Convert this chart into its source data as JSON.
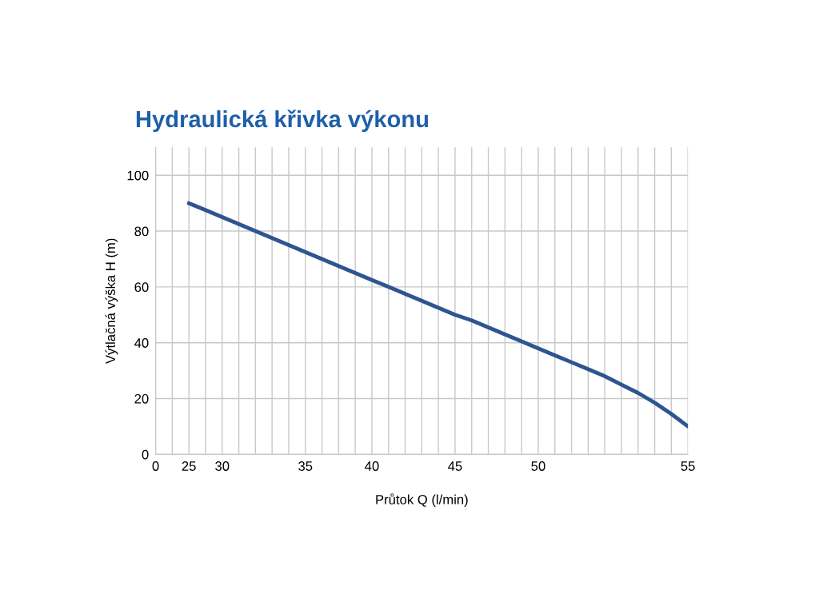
{
  "chart_data": {
    "type": "line",
    "title": "Hydraulická křivka výkonu",
    "xlabel": "Průtok Q (l/min)",
    "ylabel": "Výtlačná výška H (m)",
    "categories": [
      "0",
      null,
      "25",
      null,
      "30",
      null,
      null,
      null,
      null,
      "35",
      null,
      null,
      null,
      "40",
      null,
      null,
      null,
      null,
      "45",
      null,
      null,
      null,
      null,
      "50",
      null,
      null,
      null,
      null,
      null,
      null,
      null,
      null,
      "55"
    ],
    "series": [
      {
        "color": "#2e5590",
        "values": [
          null,
          null,
          90,
          87.5,
          85,
          82.5,
          80,
          77.5,
          75,
          72.5,
          70,
          67.5,
          65,
          62.5,
          60,
          57.5,
          55,
          52.5,
          50,
          48,
          45.5,
          43,
          40.5,
          38,
          35.5,
          33,
          30.5,
          28,
          25,
          22,
          18.5,
          14.5,
          10
        ]
      }
    ],
    "ylim": [
      0,
      110
    ],
    "yticks": [
      0,
      20,
      40,
      60,
      80,
      100
    ],
    "grid": true
  }
}
